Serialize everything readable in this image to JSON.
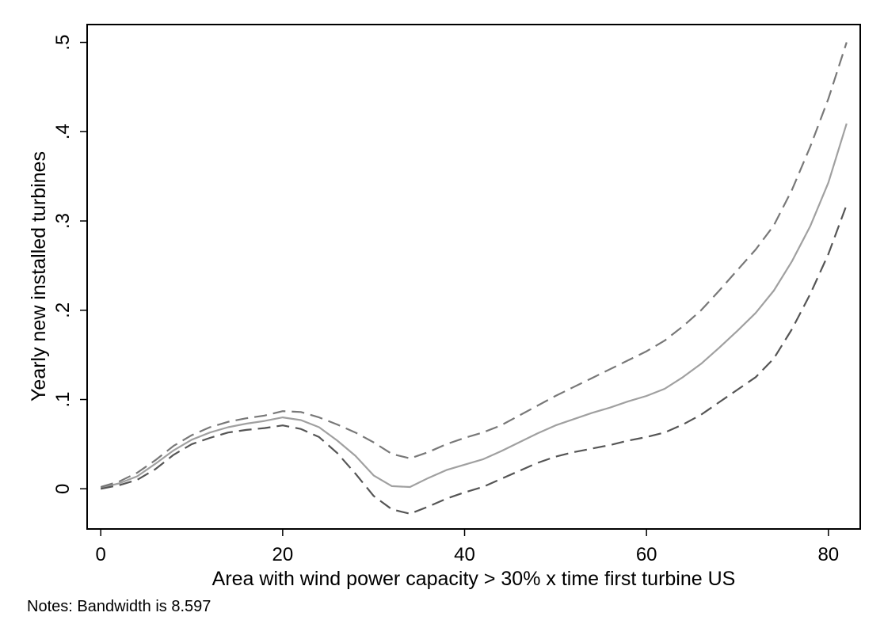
{
  "chart_data": {
    "type": "line",
    "title": "",
    "xlabel": "Area with wind power capacity > 30% x time first turbine US",
    "ylabel": "Yearly new installed turbines",
    "xlim": [
      -1.5,
      83.5
    ],
    "ylim": [
      -0.045,
      0.52
    ],
    "x_ticks": [
      0,
      20,
      40,
      60,
      80
    ],
    "x_tick_labels": [
      "0",
      "20",
      "40",
      "60",
      "80"
    ],
    "y_ticks": [
      0,
      0.1,
      0.2,
      0.3,
      0.4,
      0.5
    ],
    "y_tick_labels": [
      "0",
      ".1",
      ".2",
      ".3",
      ".4",
      ".5"
    ],
    "grid": false,
    "legend": "none",
    "notes": "Notes: Bandwidth is 8.597",
    "series": [
      {
        "role": "estimate",
        "style": "solid",
        "color": "#a0a0a0",
        "x": [
          0,
          2,
          4,
          6,
          8,
          10,
          12,
          14,
          16,
          18,
          20,
          22,
          24,
          26,
          28,
          30,
          32,
          34,
          36,
          38,
          40,
          42,
          44,
          46,
          48,
          50,
          52,
          54,
          56,
          58,
          60,
          62,
          64,
          66,
          68,
          70,
          72,
          74,
          76,
          78,
          80,
          82
        ],
        "y": [
          0.001,
          0.006,
          0.014,
          0.028,
          0.043,
          0.055,
          0.063,
          0.069,
          0.073,
          0.076,
          0.08,
          0.077,
          0.069,
          0.054,
          0.037,
          0.015,
          0.003,
          0.002,
          0.012,
          0.021,
          0.027,
          0.033,
          0.042,
          0.052,
          0.062,
          0.071,
          0.078,
          0.085,
          0.091,
          0.098,
          0.104,
          0.112,
          0.125,
          0.14,
          0.158,
          0.177,
          0.197,
          0.222,
          0.255,
          0.294,
          0.343,
          0.409
        ]
      },
      {
        "role": "upper-ci",
        "style": "dashed",
        "color": "#787878",
        "x": [
          0,
          2,
          4,
          6,
          8,
          10,
          12,
          14,
          16,
          18,
          20,
          22,
          24,
          26,
          28,
          30,
          32,
          34,
          36,
          38,
          40,
          42,
          44,
          46,
          48,
          50,
          52,
          54,
          56,
          58,
          60,
          62,
          64,
          66,
          68,
          70,
          72,
          74,
          76,
          78,
          80,
          82
        ],
        "y": [
          0.002,
          0.008,
          0.018,
          0.032,
          0.048,
          0.06,
          0.069,
          0.075,
          0.079,
          0.082,
          0.087,
          0.086,
          0.08,
          0.072,
          0.063,
          0.052,
          0.039,
          0.034,
          0.041,
          0.05,
          0.057,
          0.063,
          0.071,
          0.082,
          0.093,
          0.104,
          0.114,
          0.124,
          0.134,
          0.144,
          0.154,
          0.166,
          0.182,
          0.2,
          0.222,
          0.245,
          0.268,
          0.295,
          0.335,
          0.383,
          0.437,
          0.5
        ]
      },
      {
        "role": "lower-ci",
        "style": "dashed",
        "color": "#555555",
        "x": [
          0,
          2,
          4,
          6,
          8,
          10,
          12,
          14,
          16,
          18,
          20,
          22,
          24,
          26,
          28,
          30,
          32,
          34,
          36,
          38,
          40,
          42,
          44,
          46,
          48,
          50,
          52,
          54,
          56,
          58,
          60,
          62,
          64,
          66,
          68,
          70,
          72,
          74,
          76,
          78,
          80,
          82
        ],
        "y": [
          0.0,
          0.004,
          0.01,
          0.022,
          0.038,
          0.05,
          0.057,
          0.063,
          0.066,
          0.068,
          0.071,
          0.067,
          0.058,
          0.04,
          0.017,
          -0.008,
          -0.023,
          -0.028,
          -0.02,
          -0.011,
          -0.004,
          0.002,
          0.011,
          0.02,
          0.029,
          0.036,
          0.041,
          0.045,
          0.049,
          0.054,
          0.058,
          0.063,
          0.072,
          0.083,
          0.097,
          0.111,
          0.125,
          0.146,
          0.179,
          0.218,
          0.263,
          0.318
        ]
      }
    ]
  }
}
